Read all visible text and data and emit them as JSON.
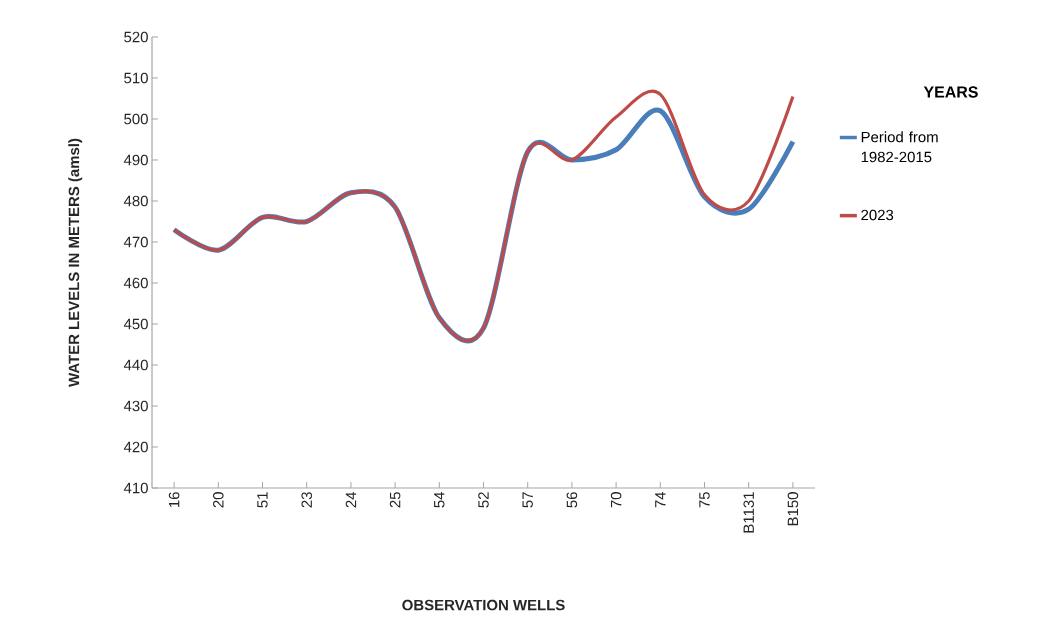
{
  "chart_data": {
    "type": "line",
    "xlabel": "OBSERVATION WELLS",
    "ylabel": "WATER LEVELS IN METERS (amsl)",
    "legend_title": "YEARS",
    "categories": [
      "16",
      "20",
      "51",
      "23",
      "24",
      "25",
      "54",
      "52",
      "57",
      "56",
      "70",
      "74",
      "75",
      "B1131",
      "B150"
    ],
    "series": [
      {
        "name": "Period from 1982-2015",
        "color": "#4a7ebb",
        "values": [
          473,
          468,
          476,
          475,
          482,
          478.5,
          451.5,
          449,
          492,
          490,
          492.5,
          502,
          481,
          478,
          494.5
        ]
      },
      {
        "name": "2023",
        "color": "#be4b48",
        "values": [
          473,
          468,
          476,
          475,
          482,
          478.5,
          451.5,
          449,
          492,
          490,
          500.5,
          506,
          481.5,
          480,
          505.5
        ]
      }
    ],
    "ylim": [
      410,
      520
    ],
    "yticks": [
      410,
      420,
      430,
      440,
      450,
      460,
      470,
      480,
      490,
      500,
      510,
      520
    ],
    "grid": false,
    "legend": "right",
    "marker": "none",
    "line_style": "solid"
  }
}
